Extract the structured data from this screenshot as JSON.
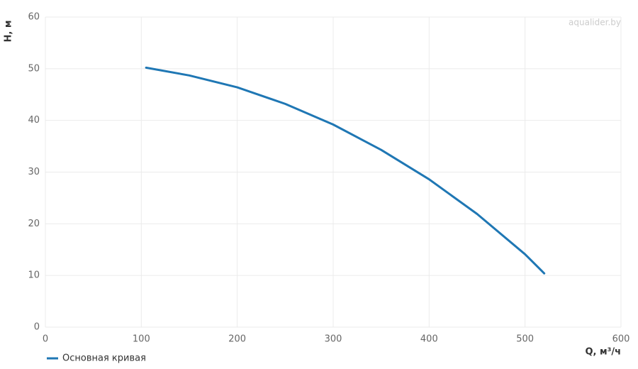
{
  "chart_data": {
    "type": "line",
    "x_label": "Q, м³/ч",
    "y_label": "H, м",
    "watermark": "aqualider.by",
    "x": [
      105,
      150,
      200,
      250,
      300,
      350,
      400,
      450,
      500,
      520
    ],
    "series": [
      {
        "name": "Основная кривая",
        "color": "#1f77b4",
        "values": [
          50.2,
          48.7,
          46.4,
          43.2,
          39.2,
          34.3,
          28.6,
          21.9,
          14.1,
          10.4
        ]
      }
    ],
    "xlim": [
      0,
      600
    ],
    "xticks": [
      0,
      100,
      200,
      300,
      400,
      500,
      600
    ],
    "ylim": [
      0,
      60
    ],
    "yticks": [
      0,
      10,
      20,
      30,
      40,
      50,
      60
    ],
    "grid": true
  }
}
